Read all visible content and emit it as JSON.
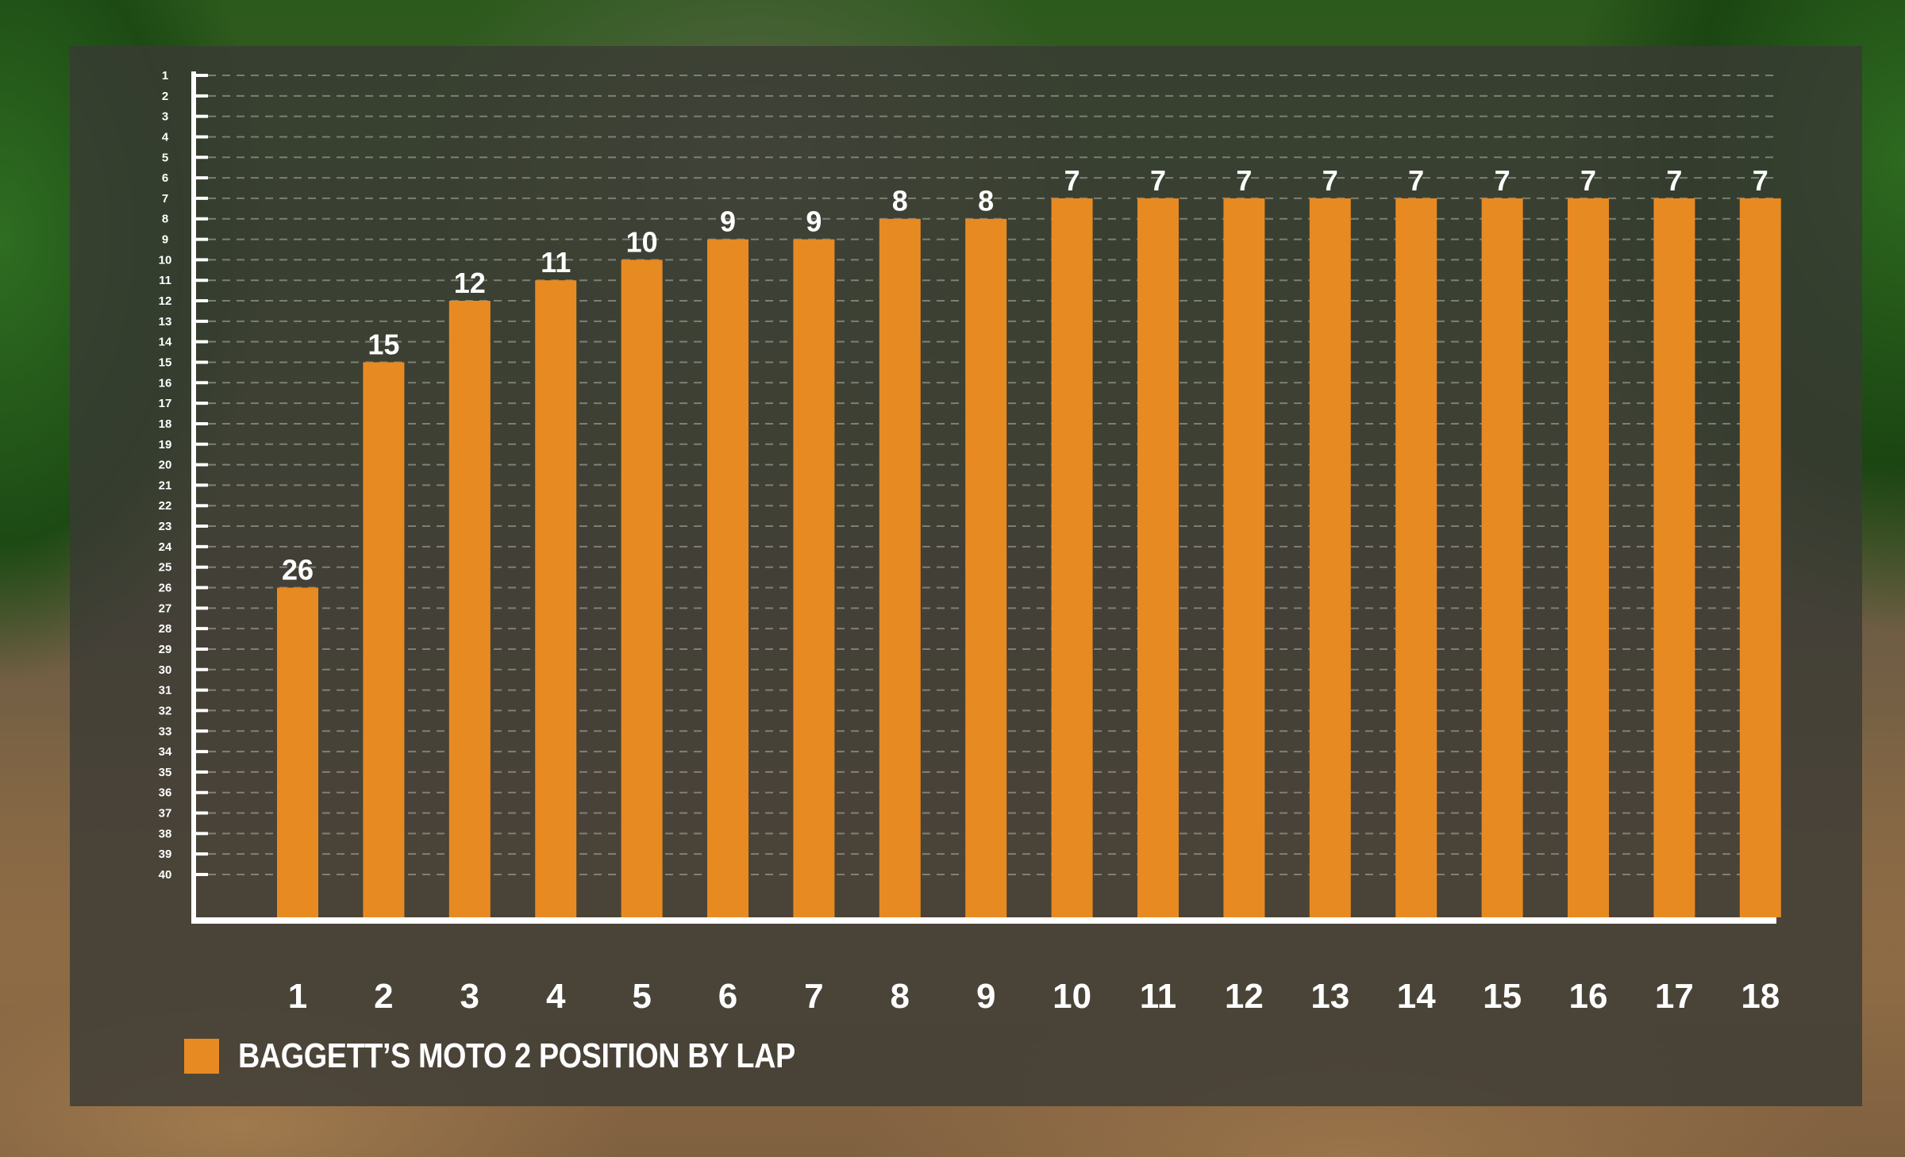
{
  "colors": {
    "bar": "#e88a22",
    "axis": "#ffffff",
    "grid": "#9a9a92",
    "panel": "rgba(58,58,52,0.80)"
  },
  "legend": {
    "label": "BAGGETT’S MOTO 2 POSITION BY LAP"
  },
  "chart_data": {
    "type": "bar",
    "categories": [
      "1",
      "2",
      "3",
      "4",
      "5",
      "6",
      "7",
      "8",
      "9",
      "10",
      "11",
      "12",
      "13",
      "14",
      "15",
      "16",
      "17",
      "18"
    ],
    "series": [
      {
        "name": "BAGGETT’S MOTO 2 POSITION BY LAP",
        "values": [
          26,
          15,
          12,
          11,
          10,
          9,
          9,
          8,
          8,
          7,
          7,
          7,
          7,
          7,
          7,
          7,
          7,
          7
        ]
      }
    ],
    "y_axis": {
      "inverted": true,
      "min": 1,
      "max": 40,
      "ticks": [
        "1",
        "2",
        "3",
        "4",
        "5",
        "6",
        "7",
        "8",
        "9",
        "10",
        "11",
        "12",
        "13",
        "14",
        "15",
        "16",
        "17",
        "18",
        "19",
        "20",
        "21",
        "22",
        "23",
        "24",
        "25",
        "26",
        "27",
        "28",
        "29",
        "30",
        "31",
        "32",
        "33",
        "34",
        "35",
        "36",
        "37",
        "38",
        "39",
        "40"
      ]
    },
    "data_labels": true,
    "grid": "horizontal-dashed",
    "legend_position": "bottom-left",
    "title": "",
    "xlabel": "",
    "ylabel": ""
  }
}
